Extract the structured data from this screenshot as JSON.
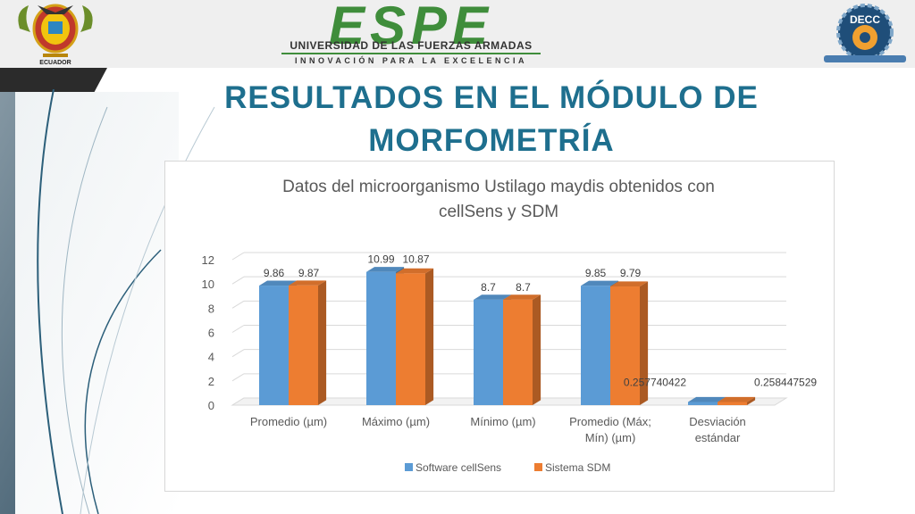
{
  "slide": {
    "title_line1": "RESULTADOS EN EL MÓDULO DE",
    "title_line2": "MORFOMETRÍA",
    "header": {
      "institution_logo_text": "ESPE",
      "institution_name": "UNIVERSIDAD DE LAS FUERZAS ARMADAS",
      "institution_motto": "INNOVACIÓN PARA LA EXCELENCIA",
      "left_seal_caption": "ECUADOR",
      "right_logo_text": "DECC",
      "left_seal_icon": "ecuador-coat-of-arms",
      "right_logo_icon": "decc-gear-emblem"
    },
    "colors": {
      "title": "#1e6f8e",
      "band": "#2c4a5e",
      "espe_green": "#3f8d3b"
    }
  },
  "chart_data": {
    "type": "bar",
    "title_line1": "Datos del microorganismo Ustilago maydis obtenidos con",
    "title_line2": "cellSens y SDM",
    "categories": [
      [
        "Promedio (µm)"
      ],
      [
        "Máximo (µm)"
      ],
      [
        "Mínimo (µm)"
      ],
      [
        "Promedio (Máx;",
        "Mín)  (µm)"
      ],
      [
        "Desviación",
        "estándar"
      ]
    ],
    "series": [
      {
        "name": "Software cellSens",
        "color": "#5b9bd5",
        "values": [
          9.86,
          10.99,
          8.7,
          9.85,
          0.257740422
        ],
        "labels": [
          "9.86",
          "10.99",
          "8.7",
          "9.85",
          "0.257740422"
        ]
      },
      {
        "name": "Sistema SDM",
        "color": "#ed7d31",
        "values": [
          9.87,
          10.87,
          8.7,
          9.79,
          0.258447529
        ],
        "labels": [
          "9.87",
          "10.87",
          "8.7",
          "9.79",
          "0.258447529"
        ]
      }
    ],
    "yticks": [
      "0",
      "2",
      "4",
      "6",
      "8",
      "10",
      "12"
    ],
    "ylim": [
      0,
      12
    ],
    "grid": true,
    "legend_position": "bottom",
    "style": "3d-clustered-column"
  }
}
